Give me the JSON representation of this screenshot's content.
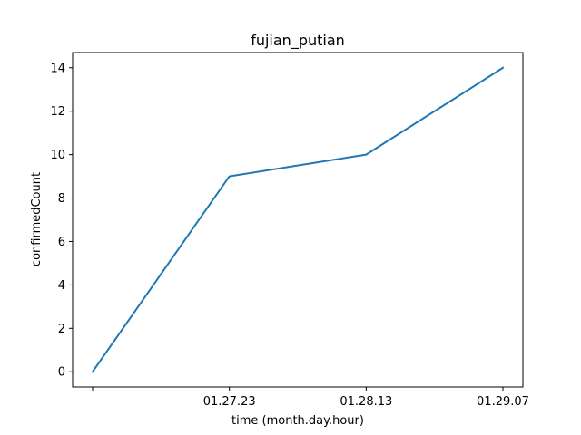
{
  "chart_data": {
    "type": "line",
    "title": "fujian_putian",
    "xlabel": "time (month.day.hour)",
    "ylabel": "confirmedCount",
    "categories": [
      "",
      "01.27.23",
      "01.28.13",
      "01.29.07"
    ],
    "series": [
      {
        "values": [
          0,
          9,
          10,
          14
        ]
      }
    ],
    "yticks": [
      0,
      2,
      4,
      6,
      8,
      10,
      12,
      14
    ],
    "ylim": [
      -0.7,
      14.7
    ],
    "grid": false,
    "line_color": "#1f77b4"
  }
}
